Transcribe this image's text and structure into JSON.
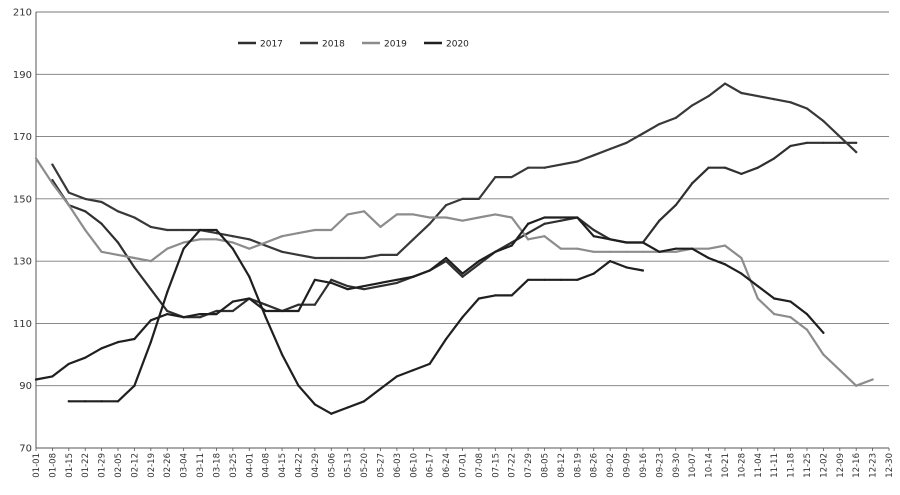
{
  "chart_data": {
    "type": "line",
    "title": "",
    "xlabel": "",
    "ylabel": "",
    "ylim": [
      70,
      210
    ],
    "yticks": [
      70,
      90,
      110,
      130,
      150,
      170,
      190,
      210
    ],
    "grid": "horizontal",
    "legend_position": "top-left",
    "categories": [
      "01-01",
      "01-08",
      "01-15",
      "01-22",
      "01-29",
      "02-05",
      "02-12",
      "02-19",
      "02-26",
      "03-04",
      "03-11",
      "03-18",
      "03-25",
      "04-01",
      "04-08",
      "04-15",
      "04-22",
      "04-29",
      "05-06",
      "05-13",
      "05-20",
      "05-27",
      "06-03",
      "06-10",
      "06-17",
      "06-24",
      "07-01",
      "07-08",
      "07-15",
      "07-22",
      "07-29",
      "08-05",
      "08-12",
      "08-19",
      "08-26",
      "09-02",
      "09-09",
      "09-16",
      "09-23",
      "09-30",
      "10-07",
      "10-14",
      "10-21",
      "10-28",
      "11-04",
      "11-11",
      "11-18",
      "11-25",
      "12-02",
      "12-09",
      "12-16",
      "12-23",
      "12-30"
    ],
    "series": [
      {
        "name": "2017",
        "color": "#2f2f2f",
        "values": [
          null,
          156,
          148,
          146,
          142,
          136,
          128,
          121,
          114,
          112,
          112,
          114,
          114,
          118,
          116,
          114,
          116,
          116,
          124,
          122,
          121,
          122,
          123,
          125,
          127,
          130,
          125,
          129,
          133,
          136,
          139,
          142,
          143,
          144,
          140,
          137,
          136,
          136,
          143,
          148,
          155,
          160,
          160,
          158,
          160,
          163,
          167,
          168,
          168,
          168,
          168,
          null,
          null
        ]
      },
      {
        "name": "2018",
        "color": "#383838",
        "values": [
          null,
          161,
          152,
          150,
          149,
          146,
          144,
          141,
          140,
          140,
          140,
          139,
          138,
          137,
          135,
          133,
          132,
          131,
          131,
          131,
          131,
          132,
          132,
          137,
          142,
          148,
          150,
          150,
          157,
          157,
          160,
          160,
          161,
          162,
          164,
          166,
          168,
          171,
          174,
          176,
          180,
          183,
          187,
          184,
          183,
          182,
          181,
          179,
          175,
          170,
          165,
          null,
          null
        ]
      },
      {
        "name": "2019",
        "color": "#8c8c8c",
        "values": [
          163,
          155,
          148,
          140,
          133,
          132,
          131,
          130,
          134,
          136,
          137,
          137,
          136,
          134,
          136,
          138,
          139,
          140,
          140,
          145,
          146,
          141,
          145,
          145,
          144,
          144,
          143,
          144,
          145,
          144,
          137,
          138,
          134,
          134,
          133,
          133,
          133,
          133,
          133,
          133,
          134,
          134,
          135,
          131,
          118,
          113,
          112,
          108,
          100,
          95,
          90,
          92,
          null
        ]
      },
      {
        "name": "2020",
        "color": "#1f1f1f",
        "values": [
          92,
          93,
          97,
          99,
          102,
          104,
          105,
          111,
          113,
          112,
          113,
          113,
          117,
          118,
          114,
          114,
          114,
          124,
          123,
          121,
          122,
          123,
          124,
          125,
          127,
          131,
          126,
          130,
          133,
          135,
          142,
          144,
          144,
          144,
          138,
          137,
          136,
          136,
          133,
          134,
          134,
          131,
          129,
          126,
          122,
          118,
          117,
          113,
          107,
          null,
          null,
          null,
          null
        ]
      },
      {
        "name": "2020",
        "color": "#1f1f1f",
        "values": [
          null,
          null,
          85,
          85,
          85,
          85,
          90,
          104,
          120,
          134,
          140,
          140,
          134,
          125,
          112,
          100,
          90,
          84,
          81,
          83,
          85,
          89,
          93,
          95,
          97,
          105,
          112,
          118,
          119,
          119,
          124,
          124,
          124,
          124,
          126,
          130,
          128,
          127,
          null,
          null,
          null,
          null,
          null,
          null,
          null,
          null,
          null,
          null,
          null,
          null,
          null,
          null,
          null
        ]
      }
    ]
  }
}
